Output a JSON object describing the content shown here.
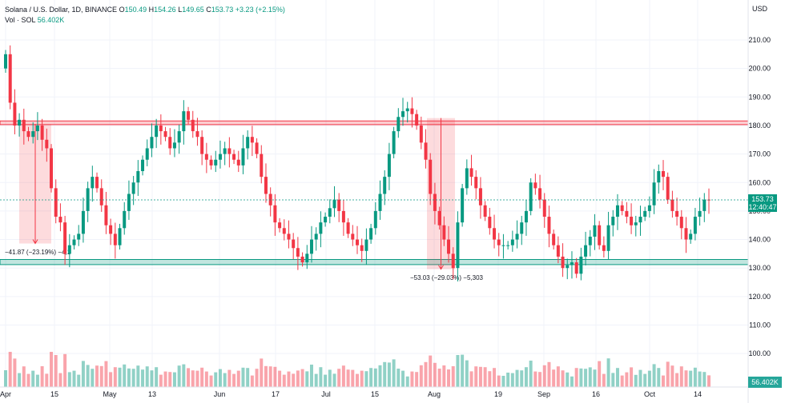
{
  "header": {
    "symbol": "Solana / U.S. Dollar, 1D, BINANCE",
    "o_label": "O",
    "o_value": "150.49",
    "h_label": "H",
    "h_value": "154.26",
    "l_label": "L",
    "l_value": "149.65",
    "c_label": "C",
    "c_value": "153.73",
    "change": "+3.23 (+2.15%)",
    "vol_label": "Vol · SOL",
    "vol_value": "56.402K",
    "currency": "USD"
  },
  "colors": {
    "up": "#089981",
    "down": "#f23645",
    "grid": "#f0f3fa",
    "text": "#131722"
  },
  "chart_data": {
    "type": "candlestick",
    "y_ticks": [
      "100.00",
      "110.00",
      "120.00",
      "130.00",
      "140.00",
      "150.00",
      "160.00",
      "170.00",
      "180.00",
      "190.00",
      "200.00",
      "210.00"
    ],
    "x_labels": [
      "Apr",
      "15",
      "May",
      "13",
      "Jun",
      "17",
      "Jul",
      "15",
      "Aug",
      "19",
      "Sep",
      "16",
      "Oct",
      "14"
    ],
    "last_price_label": "153.73",
    "countdown_label": "12:40:47",
    "volume_label": "56.402K",
    "zones": [
      {
        "name": "resistance",
        "low": 180.3,
        "high": 181.6,
        "color": "#f23645"
      },
      {
        "name": "support",
        "low": 131.2,
        "high": 133.0,
        "color": "#089981"
      }
    ],
    "measures": [
      {
        "label": "−41.87 (−23.19%) −4,1",
        "from": 180.5,
        "to": 138.6
      },
      {
        "label": "−53.03 (−29.03%) −5,303",
        "from": 182.6,
        "to": 129.6
      }
    ],
    "closes": [
      205,
      188,
      180,
      182,
      178,
      176,
      178,
      180,
      175,
      172,
      158,
      148,
      146,
      135,
      138,
      140,
      142,
      150,
      158,
      162,
      158,
      152,
      145,
      142,
      138,
      144,
      150,
      156,
      160,
      164,
      168,
      172,
      176,
      180,
      178,
      176,
      172,
      174,
      178,
      185,
      182,
      178,
      176,
      170,
      168,
      166,
      168,
      170,
      172,
      170,
      168,
      166,
      172,
      176,
      174,
      170,
      162,
      156,
      152,
      146,
      144,
      142,
      140,
      137,
      134,
      132,
      135,
      140,
      142,
      146,
      148,
      151,
      154,
      150,
      146,
      142,
      140,
      138,
      136,
      140,
      144,
      150,
      156,
      162,
      170,
      178,
      183,
      185,
      186,
      184,
      180,
      174,
      168,
      156,
      150,
      145,
      140,
      135,
      130,
      146,
      158,
      165,
      162,
      158,
      152,
      148,
      144,
      140,
      138,
      138,
      138,
      140,
      142,
      146,
      150,
      160,
      158,
      154,
      148,
      142,
      138,
      134,
      130,
      131,
      132,
      128,
      134,
      138,
      141,
      145,
      138,
      136,
      145,
      148,
      152,
      150,
      148,
      145,
      146,
      148,
      150,
      152,
      160,
      164,
      162,
      154,
      150,
      148,
      144,
      140,
      142,
      148,
      150,
      154,
      153.73
    ]
  }
}
